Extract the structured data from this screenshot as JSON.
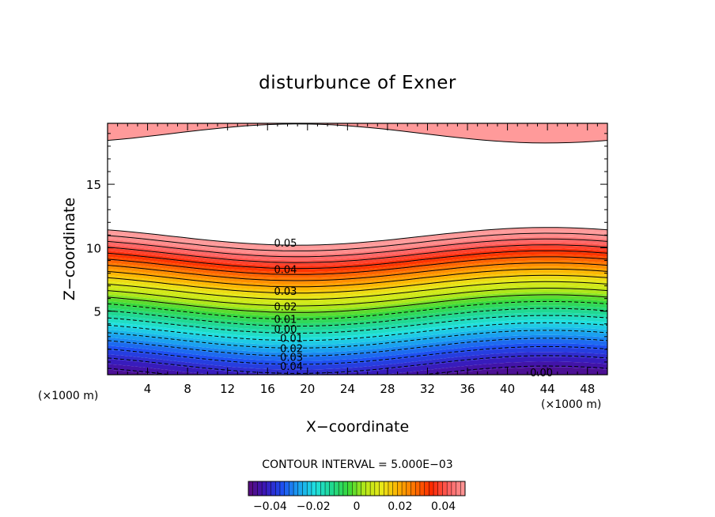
{
  "chart_data": {
    "type": "heatmap",
    "title": "disturbunce of Exner",
    "xlabel": "X−coordinate",
    "ylabel": "Z−coordinate",
    "x_unit_label": "(×1000 m)",
    "z_unit_label": "(×1000 m)",
    "xlim": [
      0,
      50
    ],
    "ylim": [
      0,
      19.8
    ],
    "x_ticks": [
      4,
      8,
      12,
      16,
      20,
      24,
      28,
      32,
      36,
      40,
      44,
      48
    ],
    "y_ticks": [
      5,
      10,
      15
    ],
    "x_tick_labels": [
      "4",
      "8",
      "12",
      "16",
      "20",
      "24",
      "28",
      "32",
      "36",
      "40",
      "44",
      "48"
    ],
    "y_tick_labels": [
      "5",
      "10",
      "15"
    ],
    "contour_interval_text": "CONTOUR INTERVAL = 5.000E−03",
    "contour_interval": 0.005,
    "contour_labels": [
      {
        "text": "0.05",
        "x": 17.8,
        "z": 10.4
      },
      {
        "text": "0.04",
        "x": 17.8,
        "z": 8.3
      },
      {
        "text": "0.03",
        "x": 17.8,
        "z": 6.6
      },
      {
        "text": "0.02",
        "x": 17.8,
        "z": 5.4
      },
      {
        "text": "0.01",
        "x": 17.8,
        "z": 4.4
      },
      {
        "text": "0.00",
        "x": 17.8,
        "z": 3.6
      },
      {
        "text": "0.01",
        "x": 18.4,
        "z": 2.9
      },
      {
        "text": "0.02",
        "x": 18.4,
        "z": 2.1
      },
      {
        "text": "0.03",
        "x": 18.4,
        "z": 1.4
      },
      {
        "text": "0.04",
        "x": 18.4,
        "z": 0.7
      },
      {
        "text": "0.00",
        "x": 43.4,
        "z": 0.2
      }
    ],
    "colorbar": {
      "min": -0.05,
      "max": 0.05,
      "tick_values": [
        -0.04,
        -0.02,
        0,
        0.02,
        0.04
      ],
      "tick_labels": [
        "−0.04",
        "−0.02",
        "0",
        "0.02",
        "0.04"
      ]
    }
  },
  "colors": {
    "scale": [
      "#5a0a7a",
      "#3a18b8",
      "#1e4cf0",
      "#1aa0f0",
      "#20e0e0",
      "#20d890",
      "#38d838",
      "#b8e818",
      "#e8e818",
      "#ffb000",
      "#ff7000",
      "#ff2800",
      "#ff6060",
      "#ff9a9a"
    ]
  }
}
